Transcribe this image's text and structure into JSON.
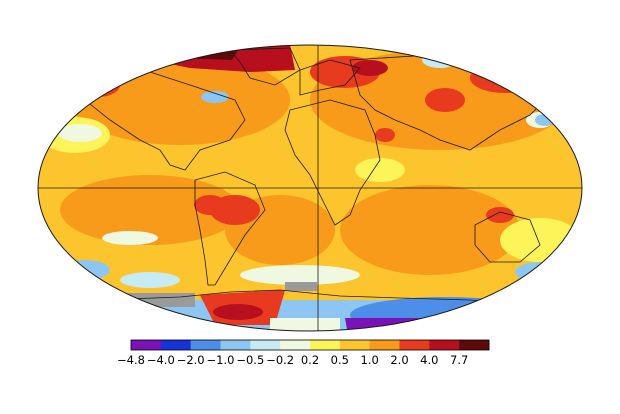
{
  "map": {
    "projection": "Robinson (elliptical)",
    "gridlines": [
      "equator",
      "prime-meridian"
    ],
    "field": "temperature anomaly (colored)",
    "regions": [
      {
        "name": "arctic-north",
        "band": 9
      },
      {
        "name": "north-america",
        "band": 8
      },
      {
        "name": "siberia",
        "band": 9
      },
      {
        "name": "south-america-interior",
        "band": 9
      },
      {
        "name": "antarctic-peninsula",
        "band": 10
      },
      {
        "name": "east-antarctica",
        "band": 0
      },
      {
        "name": "southern-ocean-ring",
        "band": 4
      }
    ]
  },
  "legend": {
    "colors": [
      "#7a12b8",
      "#1533d8",
      "#4c8ee8",
      "#8dc6f2",
      "#c6ebf2",
      "#eff8e0",
      "#fdf45a",
      "#fdc52d",
      "#f89a1a",
      "#e83a1f",
      "#b80f1e",
      "#5e0a0a"
    ],
    "labels": [
      "−4.8",
      "−4.0",
      "−2.0",
      "−1.0",
      "−0.5",
      "−0.2",
      "0.2",
      "0.5",
      "1.0",
      "2.0",
      "4.0",
      "7.7"
    ]
  }
}
